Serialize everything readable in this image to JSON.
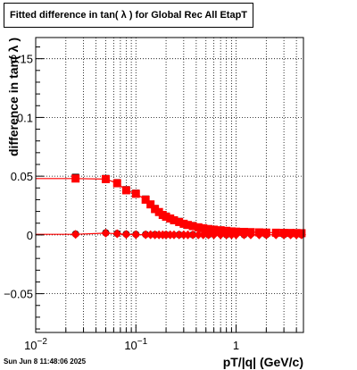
{
  "chart_data": {
    "type": "scatter",
    "title": "Fitted difference in tan( λ ) for Global Rec All EtapT",
    "xlabel": "pT/|q| (GeV/c)",
    "ylabel": "difference in tan( λ )",
    "xscale": "log",
    "xlim": [
      0.01,
      4.7
    ],
    "ylim": [
      -0.083,
      0.168
    ],
    "grid": true,
    "yticks": [
      {
        "value": -0.05,
        "label": "−0.05"
      },
      {
        "value": 0,
        "label": "0"
      },
      {
        "value": 0.05,
        "label": "0.05"
      },
      {
        "value": 0.1,
        "label": "0.1"
      },
      {
        "value": 0.15,
        "label": "0.15"
      }
    ],
    "xticks": [
      {
        "value": 0.01,
        "label": "10",
        "exp": "−2"
      },
      {
        "value": 0.1,
        "label": "10",
        "exp": "−1"
      },
      {
        "value": 1,
        "label": "1",
        "exp": ""
      }
    ],
    "series": [
      {
        "marker": "square",
        "color": "#ff0000",
        "x": [
          0.025,
          0.05,
          0.065,
          0.08,
          0.1,
          0.125,
          0.14,
          0.155,
          0.17,
          0.185,
          0.2,
          0.22,
          0.24,
          0.27,
          0.3,
          0.33,
          0.37,
          0.42,
          0.47,
          0.53,
          0.6,
          0.7,
          0.8,
          0.9,
          1.0,
          1.2,
          1.4,
          1.7,
          2.0,
          2.5,
          3.0,
          3.5,
          4.0,
          4.5
        ],
        "y": [
          0.048,
          0.0475,
          0.044,
          0.038,
          0.035,
          0.03,
          0.026,
          0.022,
          0.0195,
          0.017,
          0.0155,
          0.014,
          0.0125,
          0.011,
          0.0095,
          0.0085,
          0.0075,
          0.0065,
          0.0057,
          0.005,
          0.0045,
          0.004,
          0.0035,
          0.003,
          0.0028,
          0.0026,
          0.0024,
          0.0022,
          0.002,
          0.0019,
          0.0018,
          0.0017,
          0.0016,
          0.0015
        ]
      },
      {
        "marker": "diamond",
        "color": "#ff0000",
        "x": [
          0.025,
          0.05,
          0.065,
          0.08,
          0.1,
          0.125,
          0.14,
          0.155,
          0.17,
          0.185,
          0.2,
          0.22,
          0.24,
          0.27,
          0.3,
          0.33,
          0.37,
          0.42,
          0.47,
          0.53,
          0.6,
          0.7,
          0.8,
          0.9,
          1.0,
          1.2,
          1.4,
          1.7,
          2.0,
          2.5,
          3.0,
          3.5,
          4.0,
          4.5
        ],
        "y": [
          0.0005,
          0.0015,
          0.001,
          0.0005,
          0.0003,
          0.0002,
          0.0002,
          0.0001,
          0.0001,
          0.0001,
          0.0001,
          0.0001,
          0.0001,
          0.0001,
          0.0001,
          0.0001,
          0.0001,
          0.0001,
          0.0001,
          0.0001,
          0.0001,
          0.0001,
          0.0001,
          0.0001,
          0.0001,
          0.0001,
          0.0001,
          0.0001,
          0.0001,
          0.0001,
          0.0001,
          0.0001,
          0.0001,
          0.0001
        ]
      }
    ],
    "reference_series": [
      {
        "color": "#000000",
        "x": [
          0.025,
          0.05,
          0.065,
          0.08,
          0.1,
          0.125,
          0.155,
          0.2,
          0.27,
          0.37,
          0.53,
          0.8,
          1.2,
          2.0,
          3.0,
          4.5
        ],
        "y": [
          0.049,
          0.048,
          0.0445,
          0.0385,
          0.0355,
          0.0305,
          0.0225,
          0.016,
          0.0115,
          0.008,
          0.0053,
          0.0037,
          0.0028,
          0.0022,
          0.0019,
          0.0016
        ]
      },
      {
        "color": "#000000",
        "x": [
          0.025,
          0.05,
          0.065,
          0.08,
          0.1,
          0.125,
          0.155,
          0.2,
          0.27,
          0.37,
          0.53,
          0.8,
          1.2,
          2.0,
          3.0,
          4.5
        ],
        "y": [
          0.0008,
          0.0018,
          0.0012,
          0.0007,
          0.0005,
          0.0004,
          0.0003,
          0.0002,
          0.0002,
          0.0002,
          0.0002,
          0.0002,
          0.0002,
          0.0002,
          0.0002,
          0.0002
        ]
      }
    ]
  },
  "footer": {
    "timestamp": "Sun Jun  8 11:48:06 2025"
  }
}
